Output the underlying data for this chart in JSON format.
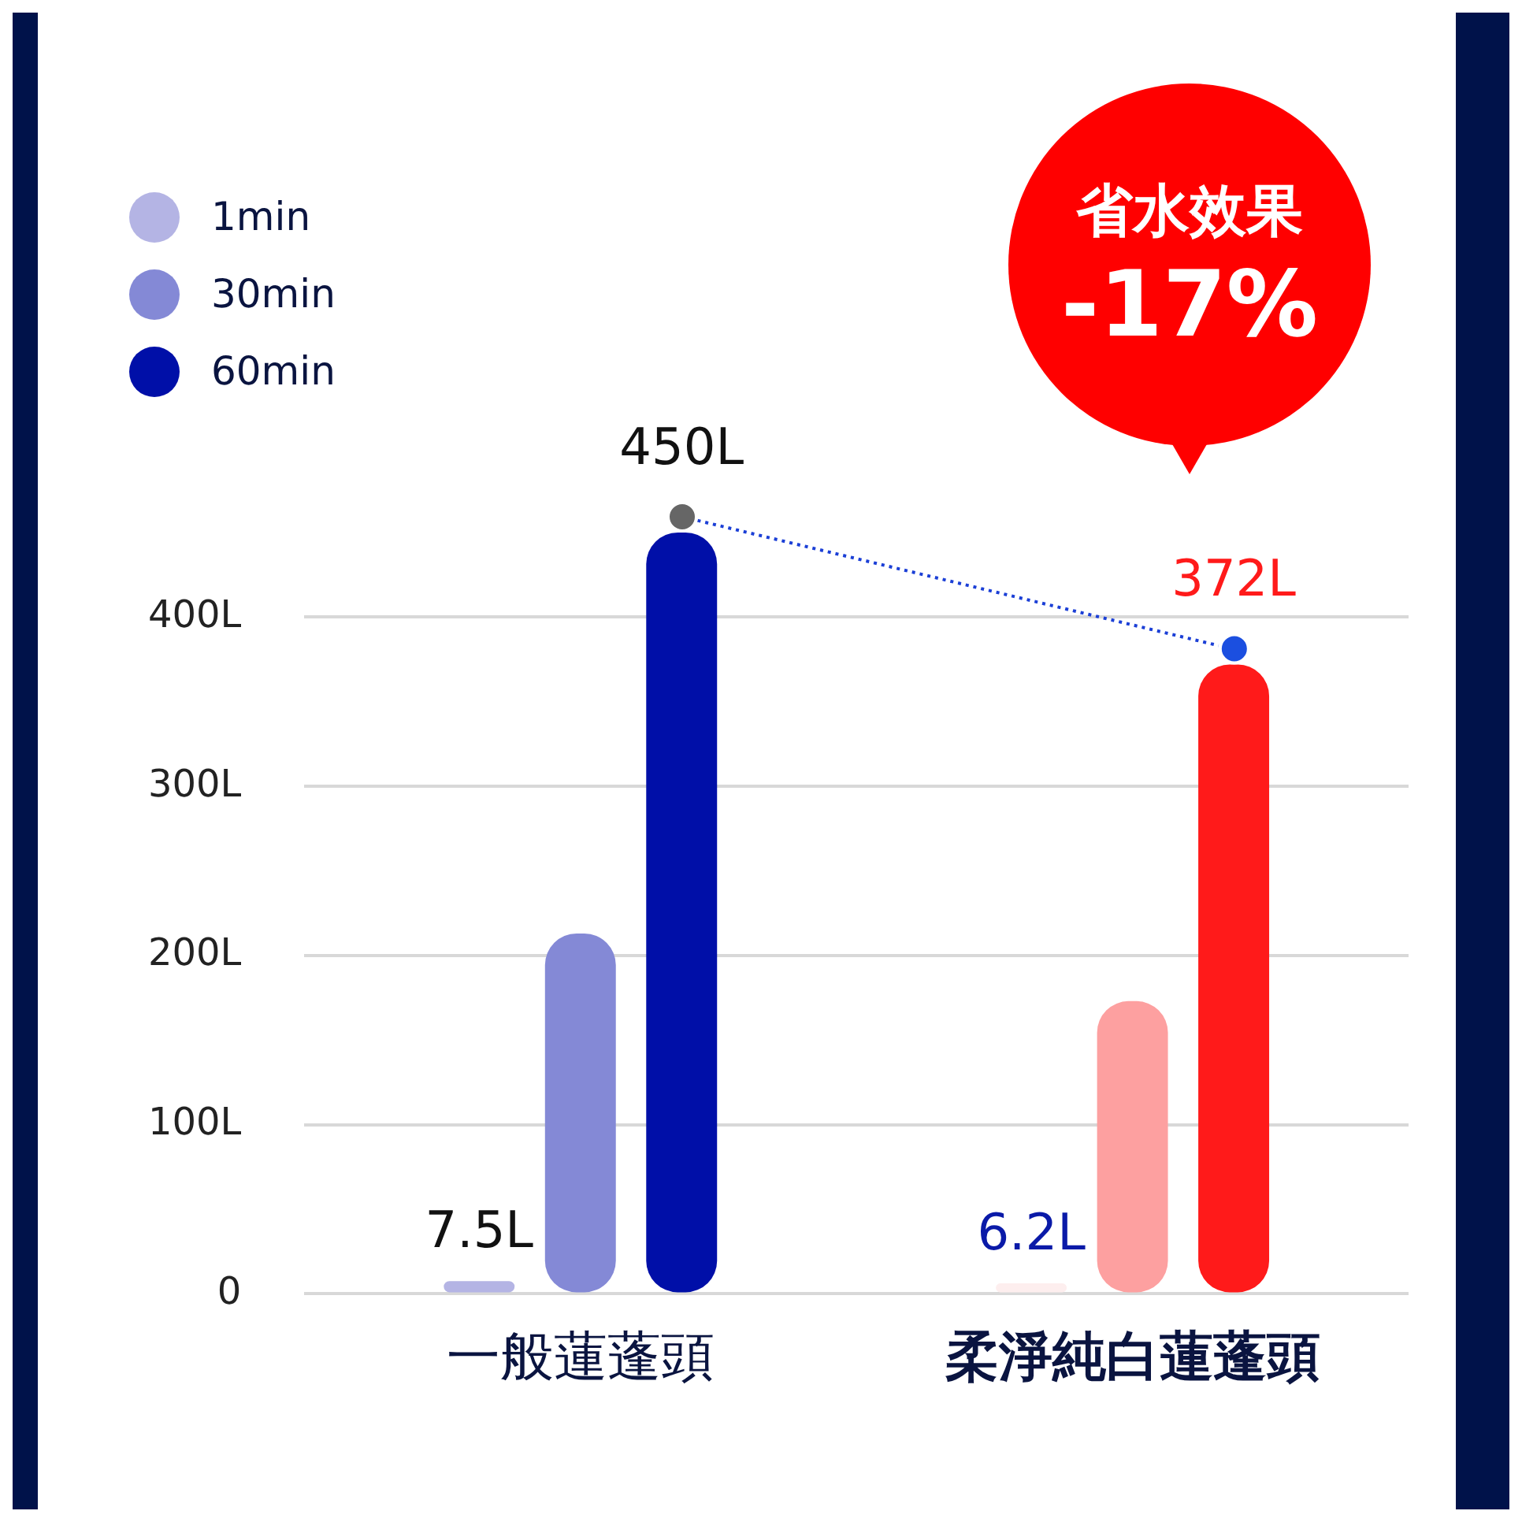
{
  "chart_data": {
    "type": "bar",
    "categories": [
      "一般蓮蓬頭",
      "柔淨純白蓮蓬頭"
    ],
    "series": [
      {
        "name": "1min",
        "color": "#b4b4e4",
        "colors": [
          "#b4b4e4",
          "#fdeeee"
        ],
        "values": [
          7.5,
          6.2
        ],
        "value_labels": [
          "7.5L",
          "6.2L"
        ]
      },
      {
        "name": "30min",
        "color": "#8489d6",
        "colors": [
          "#8489d6",
          "#fda0a0"
        ],
        "values": [
          213,
          173
        ],
        "value_labels": [
          null,
          null
        ]
      },
      {
        "name": "60min",
        "color": "#000fa8",
        "colors": [
          "#000fa8",
          "#ff1a1a"
        ],
        "values": [
          450,
          372
        ],
        "value_labels": [
          "450L",
          "372L"
        ]
      }
    ],
    "ylim": [
      0,
      450
    ],
    "yticks": [
      {
        "value": 0,
        "label": "0"
      },
      {
        "value": 100,
        "label": "100L"
      },
      {
        "value": 200,
        "label": "200L"
      },
      {
        "value": 300,
        "label": "300L"
      },
      {
        "value": 400,
        "label": "400L"
      }
    ],
    "grid": "y",
    "legend": "top left",
    "annotations": [
      "省水效果",
      "-17%"
    ]
  }
}
